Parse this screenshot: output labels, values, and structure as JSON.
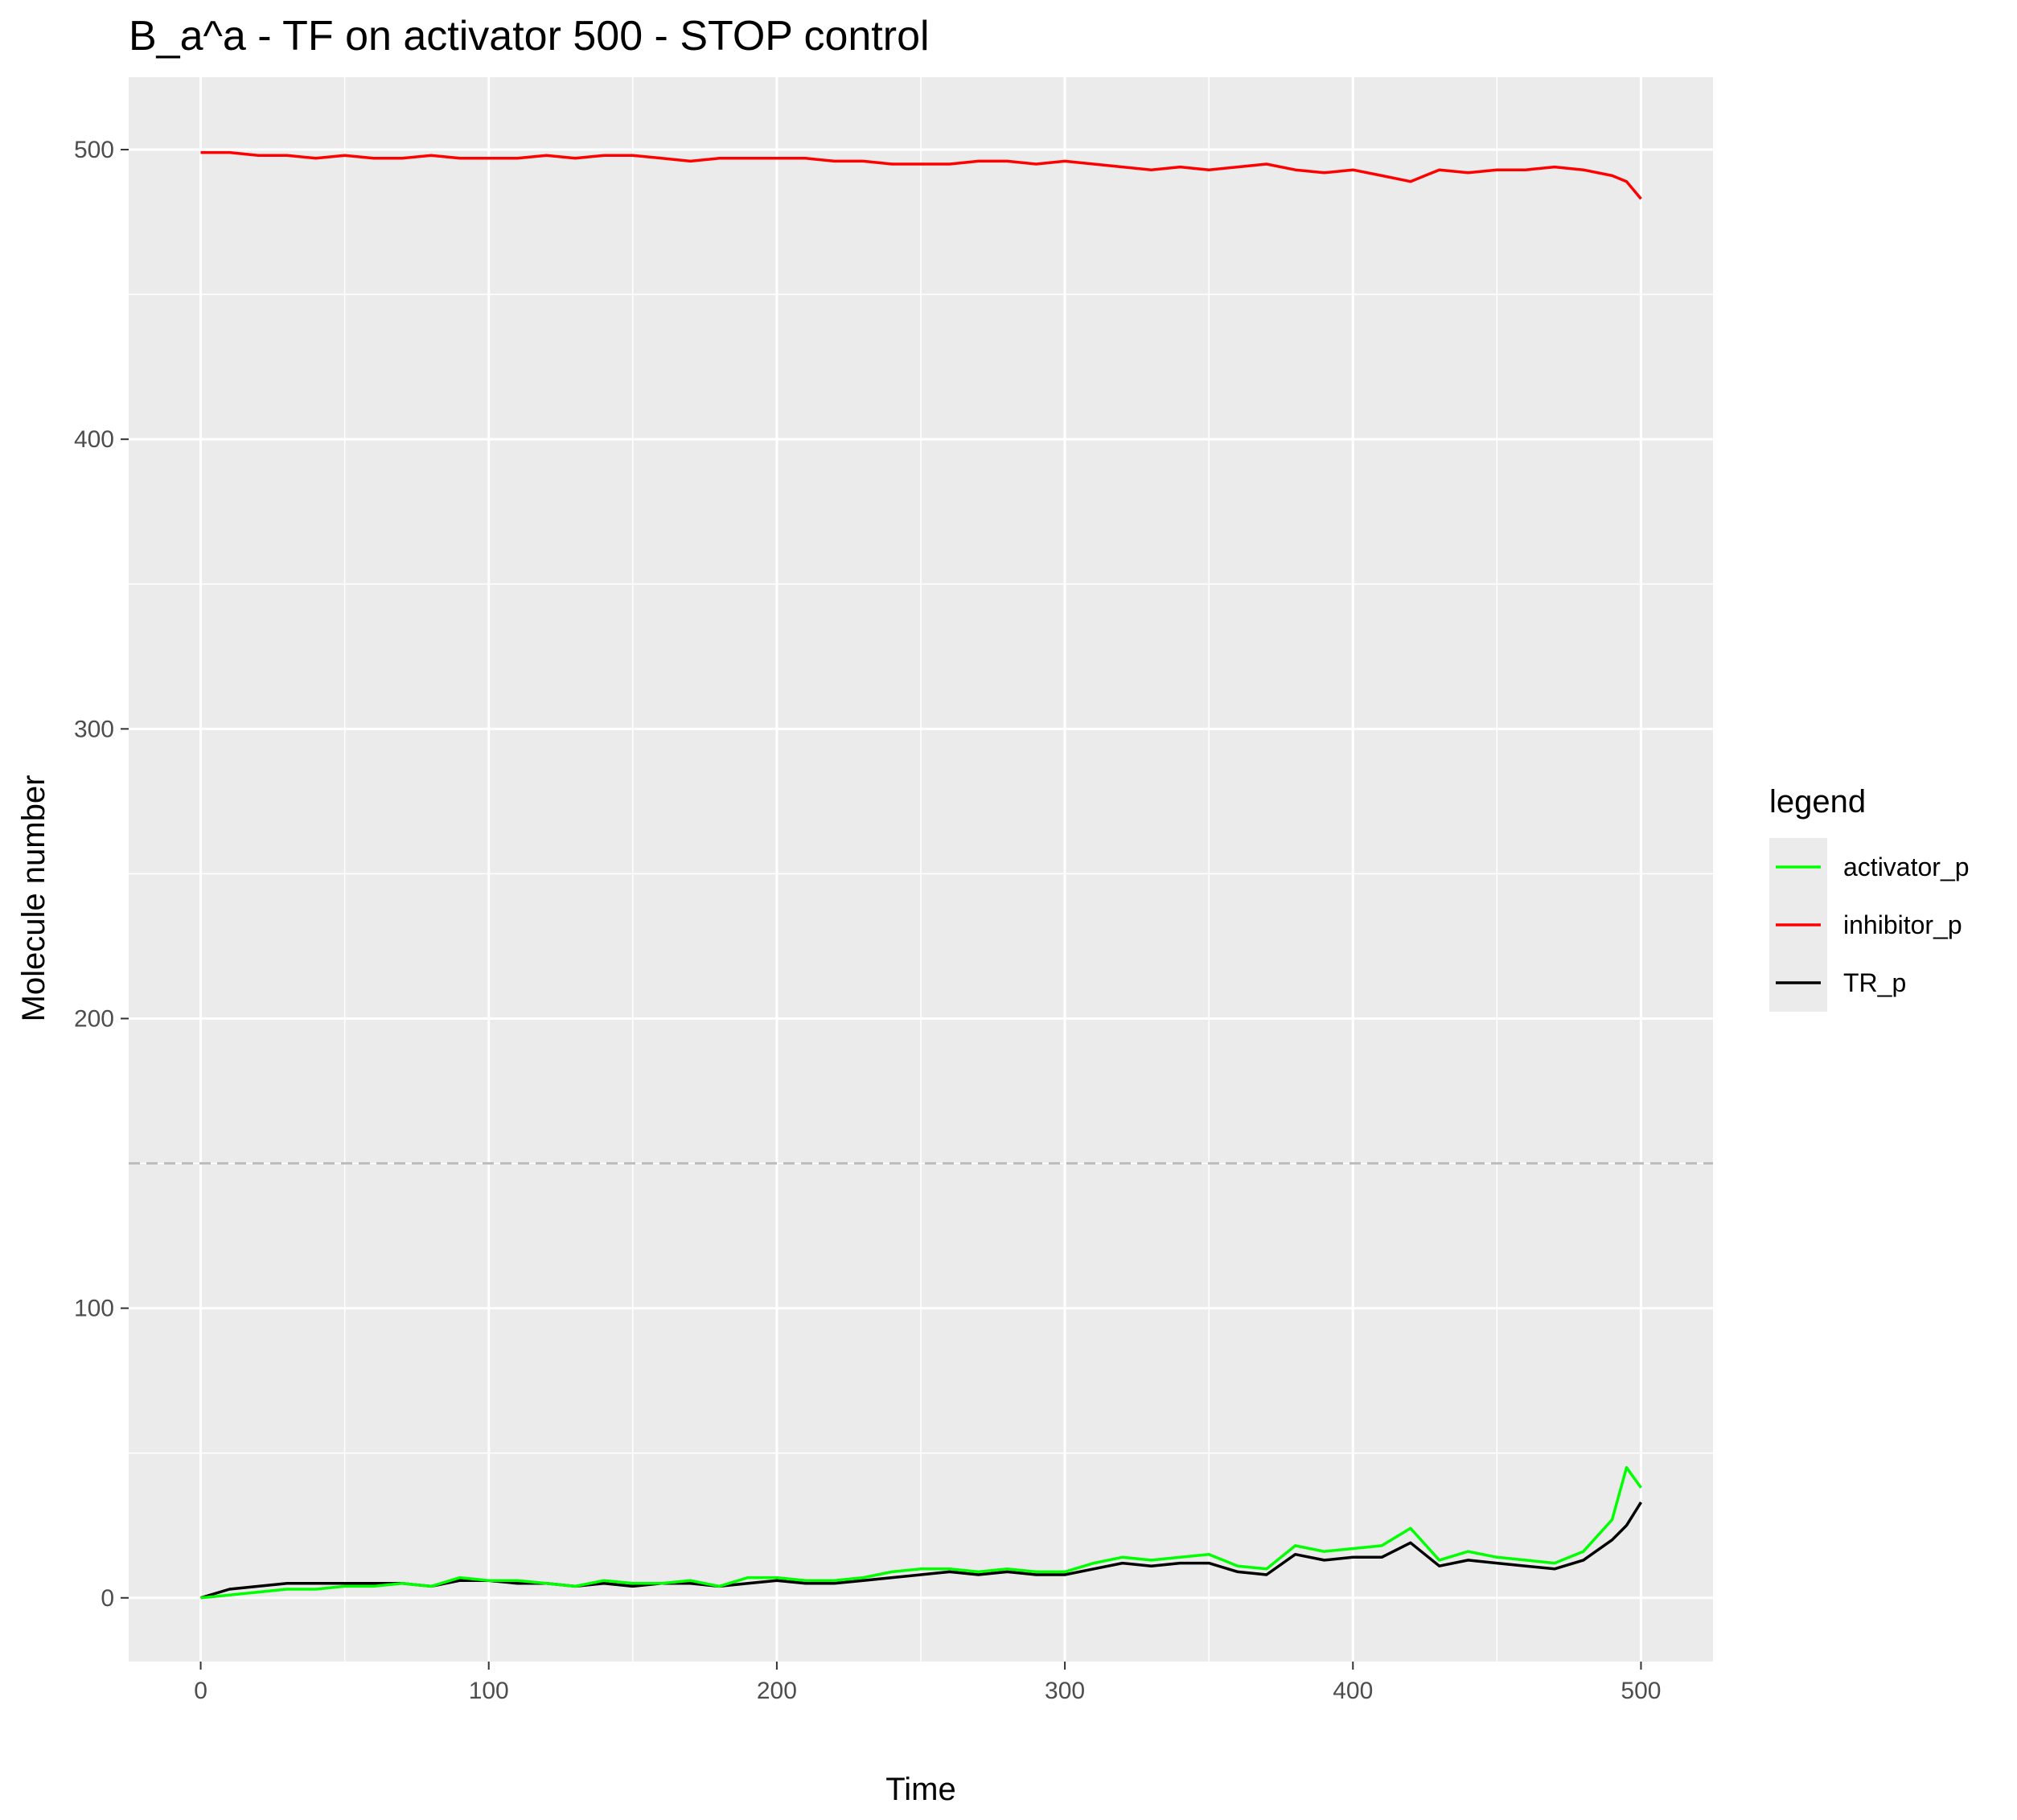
{
  "chart_data": {
    "type": "line",
    "title": "B_a^a - TF on activator 500 - STOP control",
    "xlabel": "Time",
    "ylabel": "Molecule number",
    "xlim": [
      -25,
      525
    ],
    "ylim": [
      -22,
      525
    ],
    "x_ticks": [
      0,
      100,
      200,
      300,
      400,
      500
    ],
    "y_ticks": [
      0,
      100,
      200,
      300,
      400,
      500
    ],
    "x_tick_labels": [
      "0",
      "100",
      "200",
      "300",
      "400",
      "500"
    ],
    "y_tick_labels": [
      "0",
      "100",
      "200",
      "300",
      "400",
      "500"
    ],
    "grid": true,
    "reference_line": {
      "y": 150,
      "style": "dashed",
      "color": "#bebebe"
    },
    "legend": {
      "title": "legend",
      "position": "right"
    },
    "series": [
      {
        "name": "activator_p",
        "color": "#00ff00",
        "x": [
          0,
          10,
          20,
          30,
          40,
          50,
          60,
          70,
          80,
          90,
          100,
          110,
          120,
          130,
          140,
          150,
          160,
          170,
          180,
          190,
          200,
          210,
          220,
          230,
          240,
          250,
          260,
          270,
          280,
          290,
          300,
          310,
          320,
          330,
          340,
          350,
          360,
          370,
          380,
          390,
          400,
          410,
          420,
          430,
          440,
          450,
          460,
          470,
          480,
          490,
          495,
          500
        ],
        "y": [
          0,
          1,
          2,
          3,
          3,
          4,
          4,
          5,
          4,
          7,
          6,
          6,
          5,
          4,
          6,
          5,
          5,
          6,
          4,
          7,
          7,
          6,
          6,
          7,
          9,
          10,
          10,
          9,
          10,
          9,
          9,
          12,
          14,
          13,
          14,
          15,
          11,
          10,
          18,
          16,
          17,
          18,
          24,
          13,
          16,
          14,
          13,
          12,
          16,
          27,
          45,
          38
        ]
      },
      {
        "name": "inhibitor_p",
        "color": "#ff0000",
        "x": [
          0,
          10,
          20,
          30,
          40,
          50,
          60,
          70,
          80,
          90,
          100,
          110,
          120,
          130,
          140,
          150,
          160,
          170,
          180,
          190,
          200,
          210,
          220,
          230,
          240,
          250,
          260,
          270,
          280,
          290,
          300,
          310,
          320,
          330,
          340,
          350,
          360,
          370,
          380,
          390,
          400,
          410,
          420,
          430,
          440,
          450,
          460,
          470,
          480,
          490,
          495,
          500
        ],
        "y": [
          499,
          499,
          498,
          498,
          497,
          498,
          497,
          497,
          498,
          497,
          497,
          497,
          498,
          497,
          498,
          498,
          497,
          496,
          497,
          497,
          497,
          497,
          496,
          496,
          495,
          495,
          495,
          496,
          496,
          495,
          496,
          495,
          494,
          493,
          494,
          493,
          494,
          495,
          493,
          492,
          493,
          491,
          489,
          493,
          492,
          493,
          493,
          494,
          493,
          491,
          489,
          483
        ]
      },
      {
        "name": "TR_p",
        "color": "#000000",
        "x": [
          0,
          10,
          20,
          30,
          40,
          50,
          60,
          70,
          80,
          90,
          100,
          110,
          120,
          130,
          140,
          150,
          160,
          170,
          180,
          190,
          200,
          210,
          220,
          230,
          240,
          250,
          260,
          270,
          280,
          290,
          300,
          310,
          320,
          330,
          340,
          350,
          360,
          370,
          380,
          390,
          400,
          410,
          420,
          430,
          440,
          450,
          460,
          470,
          480,
          490,
          495,
          500
        ],
        "y": [
          0,
          3,
          4,
          5,
          5,
          5,
          5,
          5,
          4,
          6,
          6,
          5,
          5,
          4,
          5,
          4,
          5,
          5,
          4,
          5,
          6,
          5,
          5,
          6,
          7,
          8,
          9,
          8,
          9,
          8,
          8,
          10,
          12,
          11,
          12,
          12,
          9,
          8,
          15,
          13,
          14,
          14,
          19,
          11,
          13,
          12,
          11,
          10,
          13,
          20,
          25,
          33
        ]
      }
    ]
  }
}
